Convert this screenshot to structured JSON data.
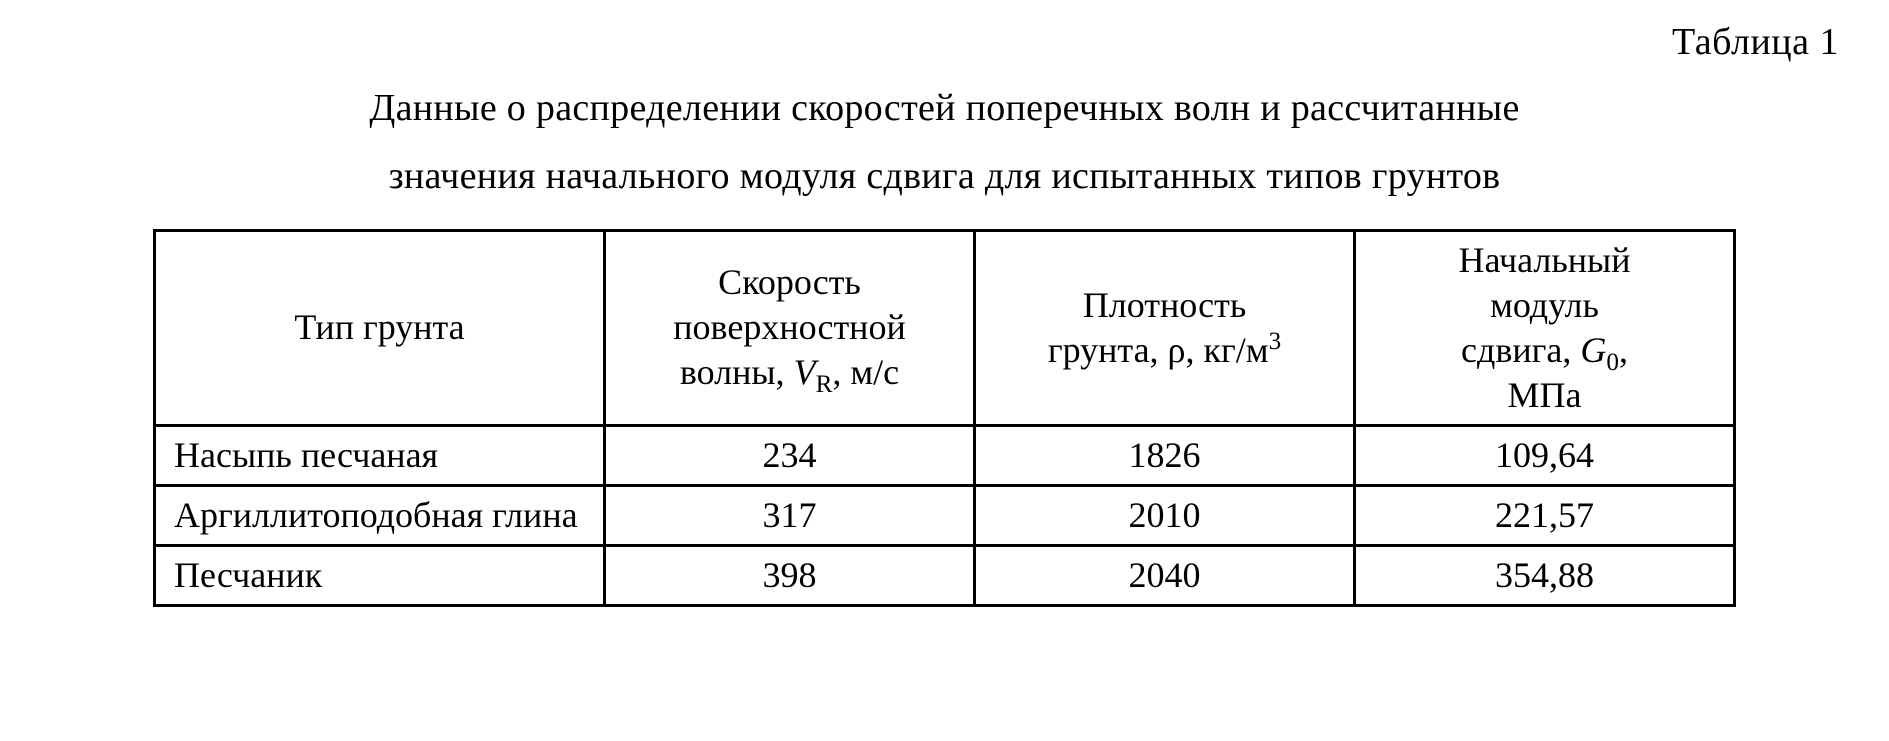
{
  "table_label": "Таблица 1",
  "caption": {
    "line1": "Данные о распределении скоростей поперечных волн и рассчитанные",
    "line2": "значения начального модуля сдвига для испытанных типов грунтов"
  },
  "table": {
    "columns": {
      "c0": "Тип грунта",
      "c1_l1": "Скорость",
      "c1_l2": "поверхностной",
      "c1_l3a": "волны, ",
      "c1_var": "V",
      "c1_sub": "R",
      "c1_l3b": ", м/с",
      "c2_l1": "Плотность",
      "c2_l2a": "грунта, ρ, кг/м",
      "c2_sup": "3",
      "c3_l1": "Начальный",
      "c3_l2": "модуль",
      "c3_l3a": "сдвига, ",
      "c3_var": "G",
      "c3_sub": "0",
      "c3_l3b": ",",
      "c3_l4": "МПа"
    },
    "rows": [
      {
        "type": "Насыпь песчаная",
        "v": "234",
        "rho": "1826",
        "g": "109,64"
      },
      {
        "type": "Аргиллитоподобная глина",
        "v": "317",
        "rho": "2010",
        "g": "221,57"
      },
      {
        "type": "Песчаник",
        "v": "398",
        "rho": "2040",
        "g": "354,88"
      }
    ]
  }
}
